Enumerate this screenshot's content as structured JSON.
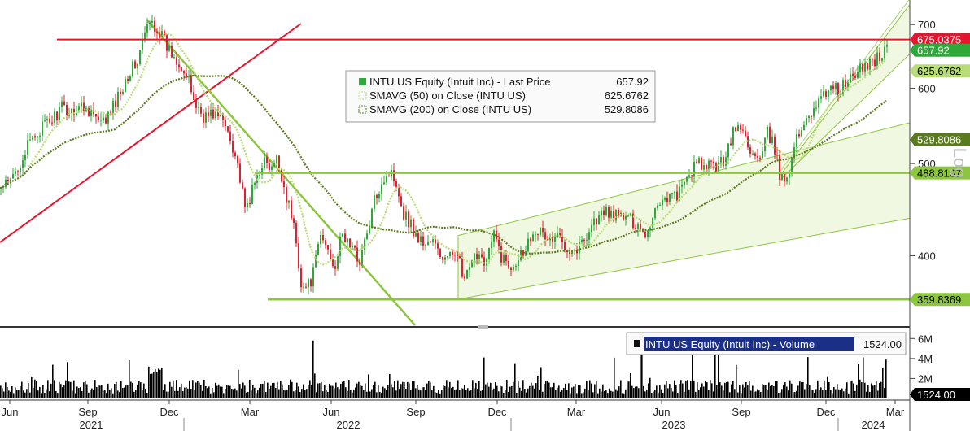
{
  "chart_data": {
    "type": "candlestick",
    "scale": "log",
    "price_axis": {
      "ticks": [
        "700",
        "600",
        "500",
        "400"
      ],
      "tick_values": [
        700,
        600,
        500,
        400
      ],
      "range": [
        338,
        740
      ],
      "label": "Log"
    },
    "volume_axis": {
      "ticks": [
        "6M",
        "4M",
        "2M"
      ],
      "tick_values": [
        6000000,
        4000000,
        2000000
      ],
      "range": [
        0,
        7000000
      ]
    },
    "time_axis": {
      "months": [
        "Jun",
        "Sep",
        "Dec",
        "Mar",
        "Jun",
        "Sep",
        "Dec",
        "Mar",
        "Jun",
        "Sep",
        "Dec",
        "Mar"
      ],
      "years": [
        "2021",
        "2022",
        "2023",
        "2024"
      ]
    },
    "legend_price": [
      {
        "name": "INTU US Equity (Intuit Inc) - Last Price",
        "value": "657.92",
        "color": "#2fa83a"
      },
      {
        "name": "SMAVG (50)  on Close (INTU US)",
        "value": "625.6762",
        "color": "#b9dc78"
      },
      {
        "name": "SMAVG (200)  on Close (INTU US)",
        "value": "529.8086",
        "color": "#5a7a1e"
      }
    ],
    "legend_volume": {
      "name": "INTU US Equity (Intuit Inc) - Volume",
      "value": "1524.00"
    },
    "price_tags": [
      {
        "label": "675.0375",
        "value": 675.0375,
        "bg": "#e8142d",
        "fg": "#ffffff"
      },
      {
        "label": "657.92",
        "value": 657.92,
        "bg": "#2fa83a",
        "fg": "#ffffff"
      },
      {
        "label": "625.6762",
        "value": 625.6762,
        "bg": "#b9dc78",
        "fg": "#000000"
      },
      {
        "label": "529.8086",
        "value": 529.8086,
        "bg": "#5a7a1e",
        "fg": "#ffffff"
      },
      {
        "label": "488.8107",
        "value": 488.8107,
        "bg": "#8cc63f",
        "fg": "#000000"
      },
      {
        "label": "359.8369",
        "value": 359.8369,
        "bg": "#8cc63f",
        "fg": "#000000"
      }
    ],
    "volume_tag": {
      "label": "1524.00"
    },
    "horizontal_levels": [
      {
        "value": 675.0375,
        "color": "#e8142d"
      },
      {
        "value": 488.8107,
        "color": "#8cc63f"
      },
      {
        "value": 359.8369,
        "color": "#8cc63f"
      }
    ],
    "anchor_prices": [
      [
        0,
        470
      ],
      [
        12,
        478
      ],
      [
        25,
        505
      ],
      [
        38,
        530
      ],
      [
        50,
        545
      ],
      [
        62,
        555
      ],
      [
        75,
        572
      ],
      [
        85,
        566
      ],
      [
        95,
        575
      ],
      [
        110,
        570
      ],
      [
        122,
        548
      ],
      [
        132,
        560
      ],
      [
        145,
        590
      ],
      [
        155,
        620
      ],
      [
        168,
        640
      ],
      [
        178,
        690
      ],
      [
        185,
        705
      ],
      [
        195,
        688
      ],
      [
        205,
        660
      ],
      [
        212,
        650
      ],
      [
        220,
        640
      ],
      [
        230,
        610
      ],
      [
        240,
        575
      ],
      [
        250,
        560
      ],
      [
        262,
        565
      ],
      [
        272,
        555
      ],
      [
        280,
        540
      ],
      [
        290,
        505
      ],
      [
        300,
        445
      ],
      [
        310,
        470
      ],
      [
        322,
        505
      ],
      [
        332,
        490
      ],
      [
        340,
        505
      ],
      [
        350,
        465
      ],
      [
        360,
        430
      ],
      [
        370,
        370
      ],
      [
        378,
        372
      ],
      [
        385,
        385
      ],
      [
        392,
        420
      ],
      [
        400,
        410
      ],
      [
        410,
        390
      ],
      [
        420,
        420
      ],
      [
        430,
        410
      ],
      [
        440,
        395
      ],
      [
        450,
        420
      ],
      [
        460,
        460
      ],
      [
        468,
        480
      ],
      [
        478,
        490
      ],
      [
        486,
        480
      ],
      [
        494,
        445
      ],
      [
        502,
        435
      ],
      [
        510,
        420
      ],
      [
        520,
        412
      ],
      [
        530,
        415
      ],
      [
        540,
        400
      ],
      [
        550,
        395
      ],
      [
        560,
        410
      ],
      [
        568,
        375
      ],
      [
        576,
        385
      ],
      [
        586,
        405
      ],
      [
        596,
        395
      ],
      [
        606,
        420
      ],
      [
        616,
        398
      ],
      [
        626,
        390
      ],
      [
        636,
        400
      ],
      [
        646,
        410
      ],
      [
        656,
        430
      ],
      [
        666,
        420
      ],
      [
        676,
        415
      ],
      [
        686,
        418
      ],
      [
        696,
        410
      ],
      [
        706,
        405
      ],
      [
        716,
        415
      ],
      [
        726,
        432
      ],
      [
        736,
        440
      ],
      [
        746,
        445
      ],
      [
        756,
        440
      ],
      [
        766,
        440
      ],
      [
        776,
        435
      ],
      [
        786,
        430
      ],
      [
        794,
        420
      ],
      [
        800,
        440
      ],
      [
        808,
        455
      ],
      [
        818,
        462
      ],
      [
        828,
        462
      ],
      [
        838,
        470
      ],
      [
        846,
        488
      ],
      [
        856,
        500
      ],
      [
        866,
        494
      ],
      [
        876,
        498
      ],
      [
        886,
        500
      ],
      [
        896,
        528
      ],
      [
        904,
        548
      ],
      [
        914,
        536
      ],
      [
        924,
        510
      ],
      [
        934,
        502
      ],
      [
        942,
        538
      ],
      [
        950,
        522
      ],
      [
        958,
        482
      ],
      [
        964,
        480
      ],
      [
        972,
        510
      ],
      [
        980,
        535
      ],
      [
        990,
        560
      ],
      [
        1000,
        575
      ],
      [
        1010,
        585
      ],
      [
        1020,
        608
      ],
      [
        1030,
        595
      ],
      [
        1040,
        610
      ],
      [
        1050,
        618
      ],
      [
        1060,
        632
      ],
      [
        1070,
        640
      ],
      [
        1080,
        650
      ],
      [
        1088,
        658
      ]
    ]
  },
  "top_strip": {
    "bg": "#ffffff"
  }
}
